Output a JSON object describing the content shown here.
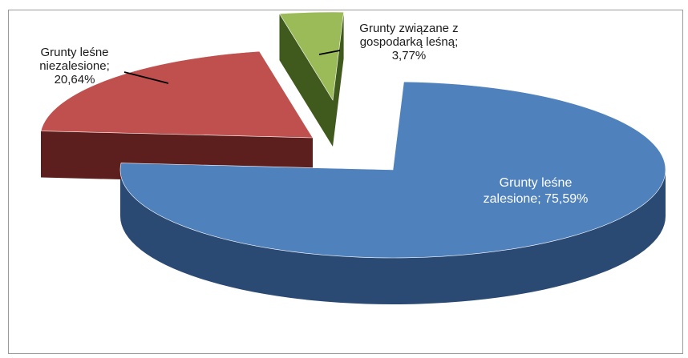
{
  "chart_data": {
    "type": "pie",
    "style": "3d-exploded",
    "title": "",
    "slices": [
      {
        "label_lines": [
          "Grunty leśne",
          "zalesione; 75,59%"
        ],
        "name": "Grunty leśne zalesione",
        "value": 75.59,
        "color": "#4f81bd",
        "side_color": "#2b4a73"
      },
      {
        "label_lines": [
          "Grunty leśne",
          "niezalesione;",
          "20,64%"
        ],
        "name": "Grunty leśne niezalesione",
        "value": 20.64,
        "color": "#c0504d",
        "side_color": "#5c1f1d"
      },
      {
        "label_lines": [
          "Grunty związane z",
          "gospodarką leśną;",
          "3,77%"
        ],
        "name": "Grunty związane z gospodarką leśną",
        "value": 3.77,
        "color": "#9bbb59",
        "side_color": "#3f5a1c"
      }
    ]
  }
}
